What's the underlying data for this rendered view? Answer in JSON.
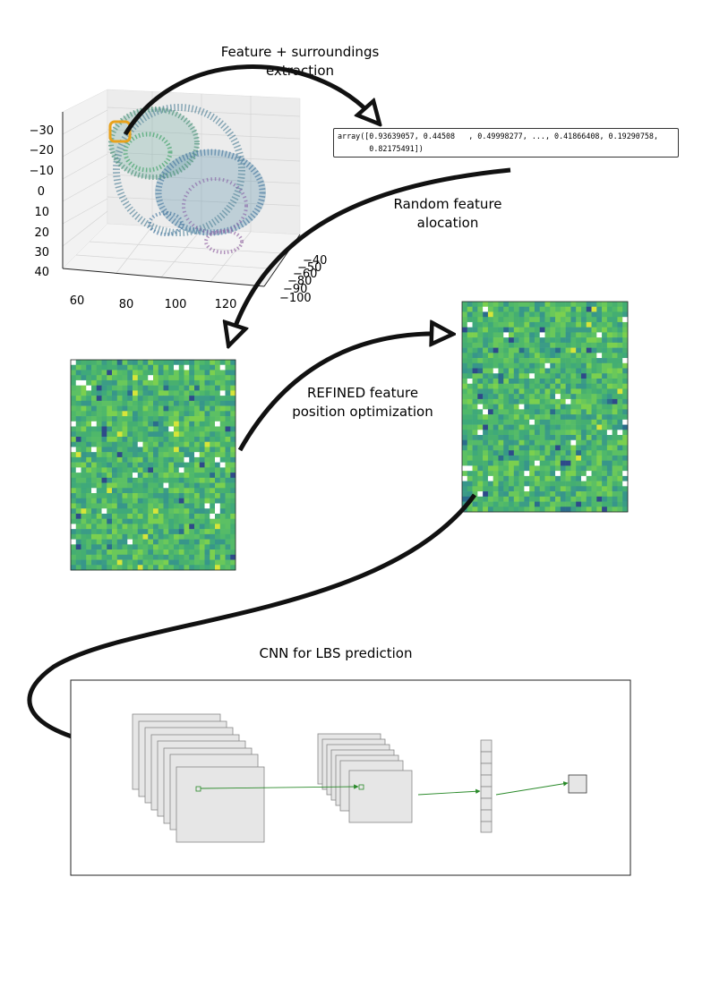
{
  "step1": {
    "label_line1": "Feature + surroundings",
    "label_line2": "extraction"
  },
  "array_output": {
    "line1": "array([0.93639057, 0.44508   , 0.49998277, ..., 0.41866408, 0.19290758,",
    "line2": "       0.82175491])"
  },
  "step2": {
    "label_line1": "Random feature",
    "label_line2": "alocation"
  },
  "step3": {
    "label_line1": "REFINED feature",
    "label_line2": "position optimization"
  },
  "step4": {
    "label": "CNN for LBS prediction"
  },
  "plot3d": {
    "z_ticks": [
      "−30",
      "−20",
      "−10",
      "0",
      "10",
      "20",
      "30",
      "40"
    ],
    "x_ticks": [
      "60",
      "80",
      "100",
      "120"
    ],
    "y_ticks": [
      "−40",
      "−50",
      "−60",
      "−80",
      "−90",
      "−100"
    ]
  },
  "colors": {
    "heatmap_base": "#4fb86a",
    "arrow": "#111111",
    "cnn_connection": "#2a8a2a",
    "highlight": "#e8a21c"
  }
}
